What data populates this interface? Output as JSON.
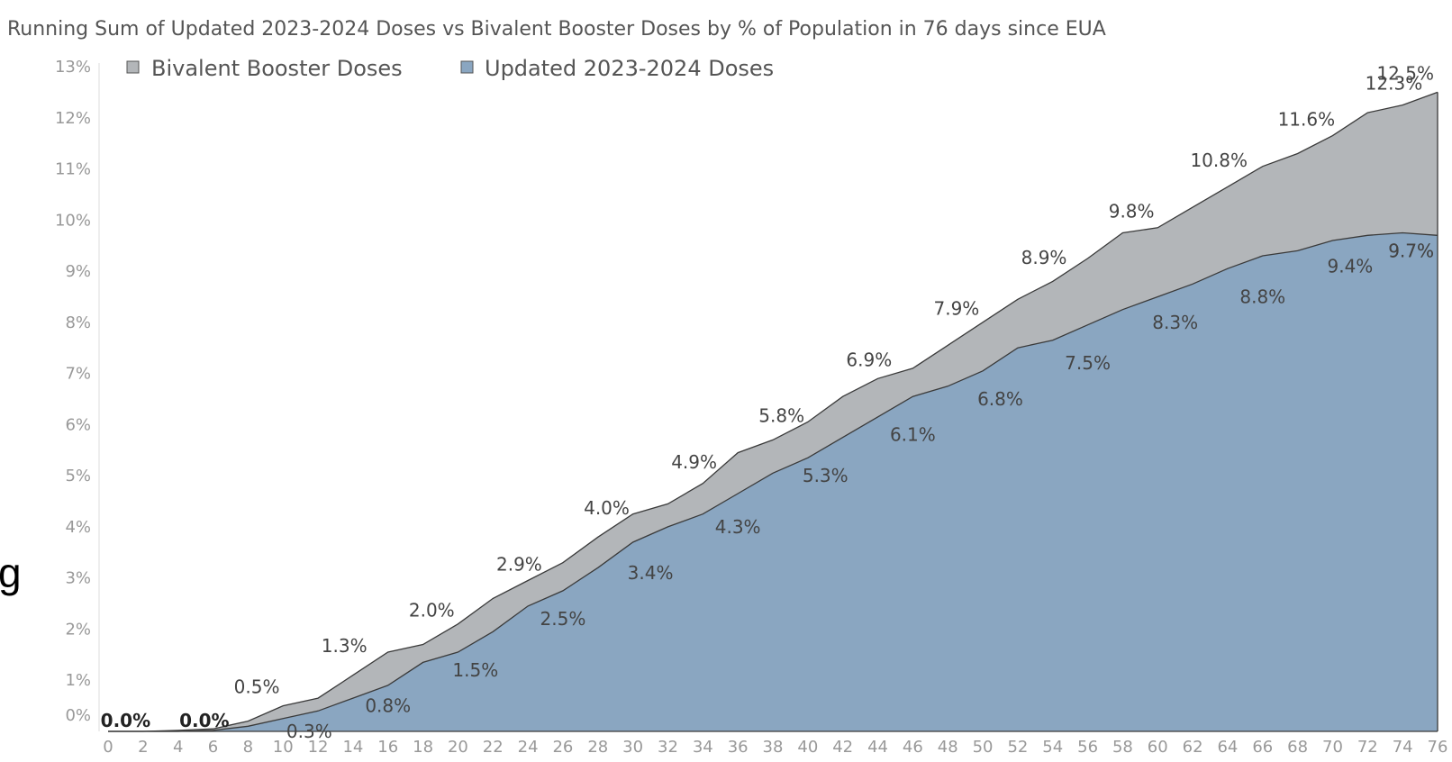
{
  "chart_data": {
    "type": "area",
    "title": "Running Sum of Updated 2023-2024 Doses vs Bivalent Booster Doses by % of Population in 76 days since EUA",
    "xlabel": "",
    "ylabel": "",
    "xlim": [
      0,
      76
    ],
    "ylim": [
      0,
      13
    ],
    "grid": false,
    "legend_position": "top-left",
    "y_ticks": [
      "0%",
      "1%",
      "2%",
      "3%",
      "4%",
      "5%",
      "6%",
      "7%",
      "8%",
      "9%",
      "10%",
      "11%",
      "12%",
      "13%"
    ],
    "x_ticks": [
      "0",
      "2",
      "4",
      "6",
      "8",
      "10",
      "12",
      "14",
      "16",
      "18",
      "20",
      "22",
      "24",
      "26",
      "28",
      "30",
      "32",
      "34",
      "36",
      "38",
      "40",
      "42",
      "44",
      "46",
      "48",
      "50",
      "52",
      "54",
      "56",
      "58",
      "60",
      "62",
      "64",
      "66",
      "68",
      "70",
      "72",
      "74",
      "76"
    ],
    "series": [
      {
        "name": "Bivalent Booster Doses",
        "color": "#b3b6b9",
        "x": [
          0,
          2,
          4,
          6,
          8,
          10,
          12,
          14,
          16,
          18,
          20,
          22,
          24,
          26,
          28,
          30,
          32,
          34,
          36,
          38,
          40,
          42,
          44,
          46,
          48,
          50,
          52,
          54,
          56,
          58,
          60,
          62,
          64,
          66,
          68,
          70,
          72,
          74,
          76
        ],
        "values": [
          0.0,
          0.0,
          0.02,
          0.05,
          0.2,
          0.5,
          0.65,
          1.1,
          1.55,
          1.7,
          2.1,
          2.6,
          2.95,
          3.3,
          3.8,
          4.25,
          4.45,
          4.85,
          5.45,
          5.7,
          6.05,
          6.55,
          6.9,
          7.1,
          7.55,
          8.0,
          8.45,
          8.8,
          9.25,
          9.75,
          9.85,
          10.25,
          10.65,
          11.05,
          11.3,
          11.65,
          12.1,
          12.25,
          12.5
        ]
      },
      {
        "name": "Updated 2023-2024 Doses",
        "color": "#8aa6c1",
        "x": [
          0,
          2,
          4,
          6,
          8,
          10,
          12,
          14,
          16,
          18,
          20,
          22,
          24,
          26,
          28,
          30,
          32,
          34,
          36,
          38,
          40,
          42,
          44,
          46,
          48,
          50,
          52,
          54,
          56,
          58,
          60,
          62,
          64,
          66,
          68,
          70,
          72,
          74,
          76
        ],
        "values": [
          0.0,
          0.0,
          0.0,
          0.02,
          0.1,
          0.25,
          0.4,
          0.65,
          0.9,
          1.35,
          1.55,
          1.95,
          2.45,
          2.75,
          3.2,
          3.7,
          4.0,
          4.25,
          4.65,
          5.05,
          5.35,
          5.75,
          6.15,
          6.55,
          6.75,
          7.05,
          7.5,
          7.65,
          7.95,
          8.25,
          8.5,
          8.75,
          9.05,
          9.3,
          9.4,
          9.6,
          9.7,
          9.75,
          9.7
        ]
      }
    ],
    "annotations": [
      {
        "text": "0.0%",
        "x": 1,
        "y": 0.0,
        "series": "Bivalent Booster Doses",
        "bold": true
      },
      {
        "text": "0.0%",
        "x": 5.5,
        "y": 0.0,
        "series": "Updated 2023-2024 Doses",
        "bold": true
      },
      {
        "text": "0.5%",
        "x": 8.5,
        "y": 0.5,
        "series": "Bivalent Booster Doses"
      },
      {
        "text": "0.3%",
        "x": 11.5,
        "y": 0.3,
        "series": "Updated 2023-2024 Doses"
      },
      {
        "text": "1.3%",
        "x": 13.5,
        "y": 1.3,
        "series": "Bivalent Booster Doses"
      },
      {
        "text": "0.8%",
        "x": 16,
        "y": 0.8,
        "series": "Updated 2023-2024 Doses"
      },
      {
        "text": "2.0%",
        "x": 18.5,
        "y": 2.0,
        "series": "Bivalent Booster Doses"
      },
      {
        "text": "1.5%",
        "x": 21,
        "y": 1.5,
        "series": "Updated 2023-2024 Doses"
      },
      {
        "text": "2.9%",
        "x": 23.5,
        "y": 2.9,
        "series": "Bivalent Booster Doses"
      },
      {
        "text": "2.5%",
        "x": 26,
        "y": 2.5,
        "series": "Updated 2023-2024 Doses"
      },
      {
        "text": "4.0%",
        "x": 28.5,
        "y": 4.0,
        "series": "Bivalent Booster Doses"
      },
      {
        "text": "3.4%",
        "x": 31,
        "y": 3.4,
        "series": "Updated 2023-2024 Doses"
      },
      {
        "text": "4.9%",
        "x": 33.5,
        "y": 4.9,
        "series": "Bivalent Booster Doses"
      },
      {
        "text": "4.3%",
        "x": 36,
        "y": 4.3,
        "series": "Updated 2023-2024 Doses"
      },
      {
        "text": "5.8%",
        "x": 38.5,
        "y": 5.8,
        "series": "Bivalent Booster Doses"
      },
      {
        "text": "5.3%",
        "x": 41,
        "y": 5.3,
        "series": "Updated 2023-2024 Doses"
      },
      {
        "text": "6.9%",
        "x": 43.5,
        "y": 6.9,
        "series": "Bivalent Booster Doses"
      },
      {
        "text": "6.1%",
        "x": 46,
        "y": 6.1,
        "series": "Updated 2023-2024 Doses"
      },
      {
        "text": "7.9%",
        "x": 48.5,
        "y": 7.9,
        "series": "Bivalent Booster Doses"
      },
      {
        "text": "6.8%",
        "x": 51,
        "y": 6.8,
        "series": "Updated 2023-2024 Doses"
      },
      {
        "text": "8.9%",
        "x": 53.5,
        "y": 8.9,
        "series": "Bivalent Booster Doses"
      },
      {
        "text": "7.5%",
        "x": 56,
        "y": 7.5,
        "series": "Updated 2023-2024 Doses"
      },
      {
        "text": "9.8%",
        "x": 58.5,
        "y": 9.8,
        "series": "Bivalent Booster Doses"
      },
      {
        "text": "8.3%",
        "x": 61,
        "y": 8.3,
        "series": "Updated 2023-2024 Doses"
      },
      {
        "text": "10.8%",
        "x": 63.5,
        "y": 10.8,
        "series": "Bivalent Booster Doses"
      },
      {
        "text": "8.8%",
        "x": 66,
        "y": 8.8,
        "series": "Updated 2023-2024 Doses"
      },
      {
        "text": "11.6%",
        "x": 68.5,
        "y": 11.6,
        "series": "Bivalent Booster Doses"
      },
      {
        "text": "9.4%",
        "x": 71,
        "y": 9.4,
        "series": "Updated 2023-2024 Doses"
      },
      {
        "text": "12.3%",
        "x": 73.5,
        "y": 12.3,
        "series": "Bivalent Booster Doses"
      },
      {
        "text": "9.7%",
        "x": 75,
        "y": 9.7,
        "series": "Updated 2023-2024 Doses"
      },
      {
        "text": "12.5%",
        "x": 75.5,
        "y": 12.5,
        "series": "Bivalent Booster Doses"
      },
      {
        "text": "9.7%",
        "x": 75.8,
        "y": 9.7,
        "series": "Updated 2023-2024 Doses"
      }
    ]
  },
  "edge_fragment": {
    "text": "g"
  }
}
